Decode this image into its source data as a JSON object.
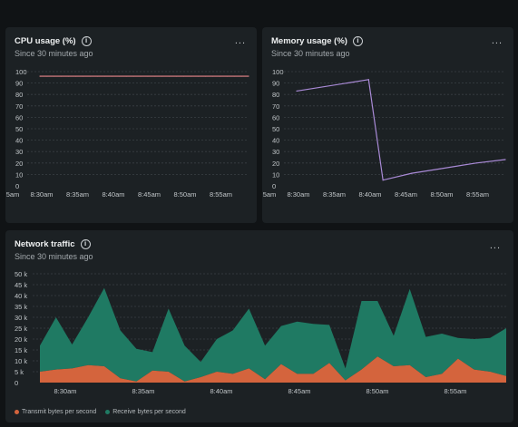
{
  "panels": {
    "cpu": {
      "title": "CPU usage (%)",
      "subtitle": "Since 30 minutes ago",
      "menu": "..."
    },
    "memory": {
      "title": "Memory usage (%)",
      "subtitle": "Since 30 minutes ago",
      "menu": "..."
    },
    "network": {
      "title": "Network traffic",
      "subtitle": "Since 30 minutes ago",
      "menu": "..."
    }
  },
  "icons": {
    "info": "info-icon",
    "menu": "more-horizontal-icon"
  },
  "colors": {
    "cpu_line": "#e8878a",
    "memory_line": "#a98ad6",
    "transmit": "#d4643d",
    "receive": "#1f7a63",
    "grid": "#3a4044",
    "axis_text": "#c0c5c8"
  },
  "chart_data": [
    {
      "id": "cpu",
      "type": "line",
      "title": "CPU usage (%)",
      "x_ticks": [
        "5am",
        "8:30am",
        "8:35am",
        "8:40am",
        "8:45am",
        "8:50am",
        "8:55am"
      ],
      "y_ticks": [
        "0",
        "10",
        "20",
        "30",
        "40",
        "50",
        "60",
        "70",
        "80",
        "90",
        "100"
      ],
      "ylim": [
        0,
        100
      ],
      "grid": true,
      "series": [
        {
          "x": [
            0,
            1,
            2,
            3,
            4,
            5,
            6,
            7,
            8,
            9,
            10,
            11,
            12,
            13,
            14,
            15,
            16,
            17,
            18,
            19,
            20,
            21,
            22,
            23,
            24,
            25,
            26,
            27,
            28,
            29
          ],
          "values": [
            96,
            96,
            96,
            96,
            96,
            96,
            96,
            96,
            96,
            96,
            96,
            96,
            96,
            96,
            96,
            96,
            96,
            96,
            96,
            96,
            96,
            96,
            96,
            96,
            96,
            96,
            96,
            96,
            96,
            96
          ]
        }
      ]
    },
    {
      "id": "memory",
      "type": "line",
      "title": "Memory usage (%)",
      "x_ticks": [
        "5am",
        "8:30am",
        "8:35am",
        "8:40am",
        "8:45am",
        "8:50am",
        "8:55am"
      ],
      "y_ticks": [
        "0",
        "10",
        "20",
        "30",
        "40",
        "50",
        "60",
        "70",
        "80",
        "90",
        "100"
      ],
      "ylim": [
        0,
        100
      ],
      "grid": true,
      "series": [
        {
          "x": [
            0,
            10,
            12,
            16,
            20,
            25,
            29
          ],
          "values": [
            83,
            93,
            5,
            11,
            15,
            20,
            23
          ]
        }
      ]
    },
    {
      "id": "network",
      "type": "area",
      "title": "Network traffic",
      "x_ticks": [
        "8:30am",
        "8:35am",
        "8:40am",
        "8:45am",
        "8:50am",
        "8:55am"
      ],
      "y_ticks": [
        "0",
        "5 k",
        "10 k",
        "15 k",
        "20 k",
        "25 k",
        "30 k",
        "35 k",
        "40 k",
        "45 k",
        "50 k"
      ],
      "ylim": [
        0,
        50000
      ],
      "grid": true,
      "legend": "bottom-left",
      "series": [
        {
          "name": "Transmit bytes per second",
          "stacked": true,
          "values": [
            5000,
            6000,
            6500,
            8000,
            7500,
            2000,
            500,
            5500,
            5000,
            500,
            2500,
            5000,
            4000,
            6500,
            1500,
            8500,
            4000,
            4000,
            9000,
            1000,
            6000,
            12000,
            7500,
            8000,
            2500,
            4000,
            11000,
            6000,
            5000,
            3000
          ]
        },
        {
          "name": "Receive bytes per second",
          "stacked": true,
          "values": [
            12000,
            24000,
            11000,
            22000,
            36000,
            22000,
            15000,
            8500,
            29000,
            16500,
            7000,
            15000,
            20000,
            27500,
            15500,
            17500,
            24000,
            23000,
            17500,
            5500,
            31500,
            25500,
            14000,
            35000,
            18500,
            18500,
            9500,
            14000,
            15500,
            22000
          ]
        }
      ]
    }
  ],
  "legend_items": [
    {
      "label": "Transmit bytes per second",
      "color": "#d4643d"
    },
    {
      "label": "Receive bytes per second",
      "color": "#1f7a63"
    }
  ]
}
